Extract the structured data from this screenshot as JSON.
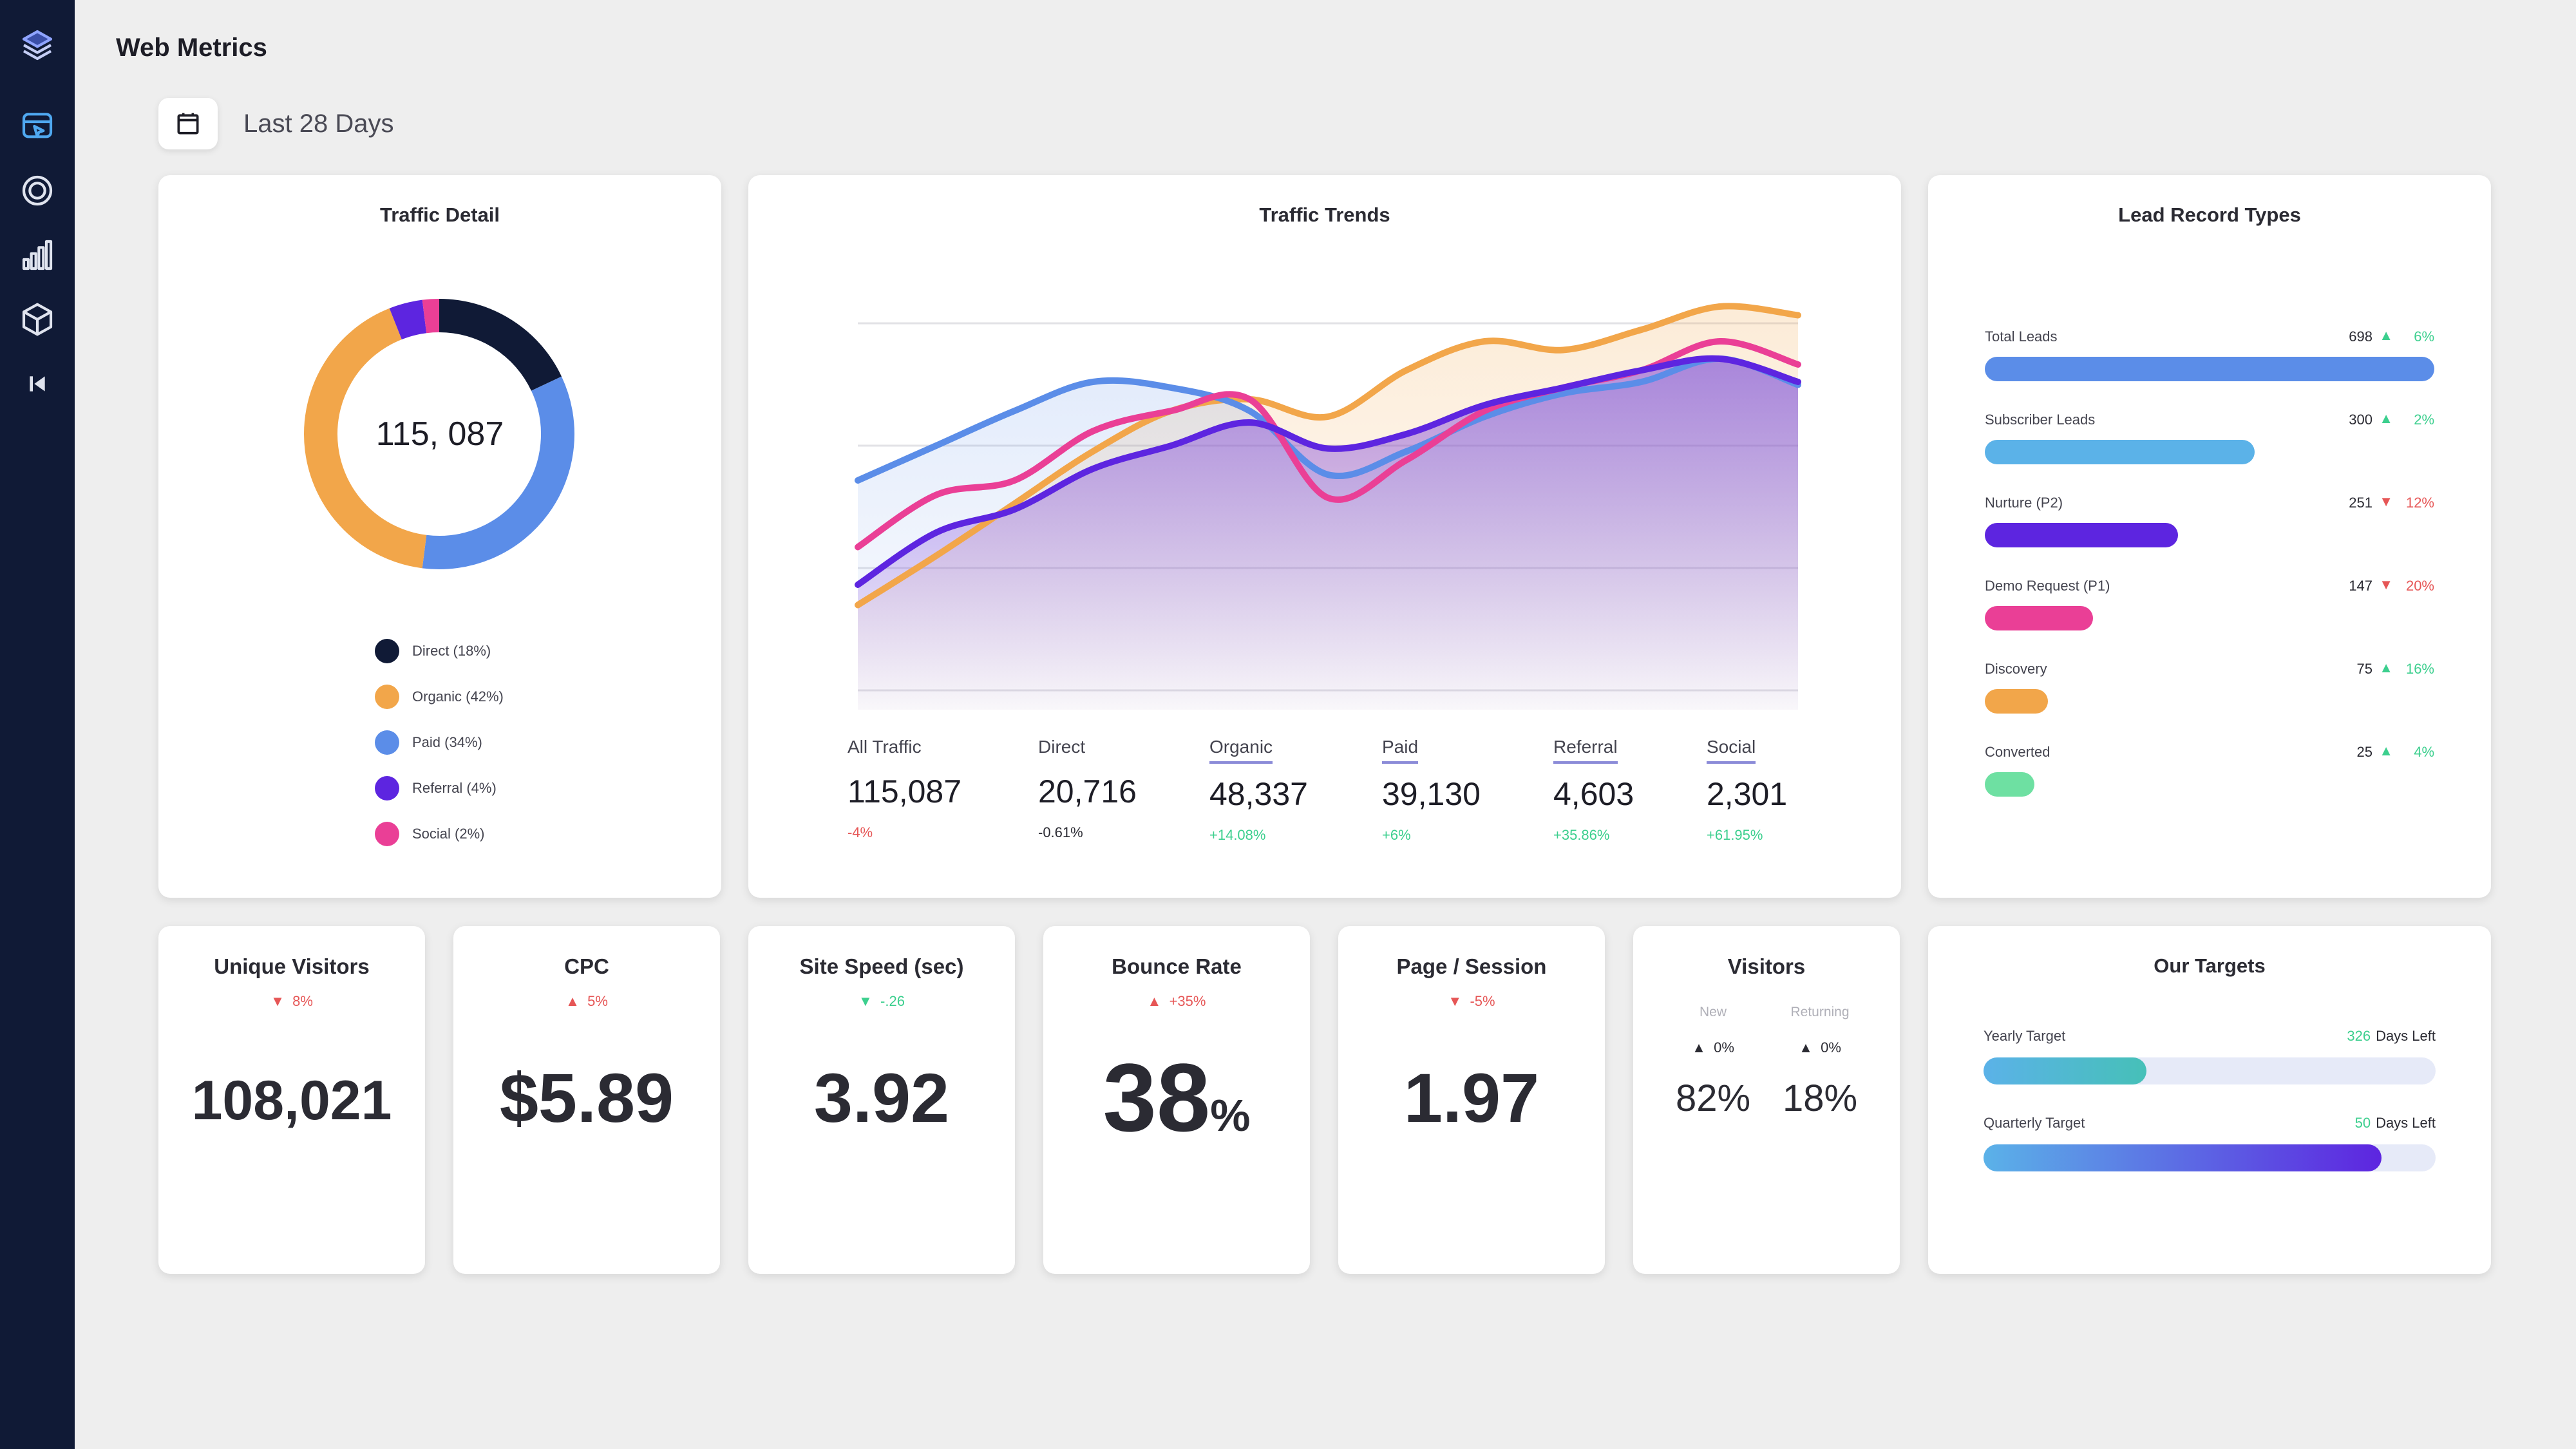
{
  "header": {
    "title": "Web Metrics"
  },
  "date_range": {
    "label": "Last 28 Days"
  },
  "sidebar": {
    "items": [
      {
        "icon": "layers-icon"
      },
      {
        "icon": "browser-click-icon"
      },
      {
        "icon": "target-icon"
      },
      {
        "icon": "bar-chart-icon"
      },
      {
        "icon": "cube-icon"
      },
      {
        "icon": "collapse-icon"
      }
    ]
  },
  "traffic_detail": {
    "title": "Traffic Detail",
    "total": "115, 087",
    "segments": [
      {
        "label": "Direct (18%)",
        "value": 18,
        "color": "#101a36"
      },
      {
        "label": "Organic (42%)",
        "value": 42,
        "color": "#f2a64a"
      },
      {
        "label": "Paid (34%)",
        "value": 34,
        "color": "#5b8de8"
      },
      {
        "label": "Referral (4%)",
        "value": 4,
        "color": "#5d25e0"
      },
      {
        "label": "Social (2%)",
        "value": 2,
        "color": "#ea3f96"
      }
    ]
  },
  "traffic_trends": {
    "title": "Traffic Trends",
    "stats": [
      {
        "label": "All Traffic",
        "value": "115,087",
        "change": "-4%",
        "trend": "down",
        "underline": false
      },
      {
        "label": "Direct",
        "value": "20,716",
        "change": "-0.61%",
        "trend": "neutral",
        "underline": false
      },
      {
        "label": "Organic",
        "value": "48,337",
        "change": "+14.08%",
        "trend": "up",
        "underline": true
      },
      {
        "label": "Paid",
        "value": "39,130",
        "change": "+6%",
        "trend": "up",
        "underline": true
      },
      {
        "label": "Referral",
        "value": "4,603",
        "change": "+35.86%",
        "trend": "up",
        "underline": true
      },
      {
        "label": "Social",
        "value": "2,301",
        "change": "+61.95%",
        "trend": "up",
        "underline": true
      }
    ]
  },
  "chart_data": {
    "type": "area",
    "x": [
      0,
      1,
      2,
      3,
      4,
      5,
      6,
      7,
      8,
      9,
      10,
      11,
      12
    ],
    "ylim": [
      0,
      100
    ],
    "grid": true,
    "series": [
      {
        "color": "#f2a64a",
        "values": [
          5,
          22,
          40,
          58,
          72,
          76,
          70,
          86,
          96,
          93,
          100,
          108,
          105
        ]
      },
      {
        "color": "#5b8de8",
        "values": [
          48,
          60,
          72,
          82,
          80,
          72,
          50,
          58,
          70,
          78,
          82,
          90,
          81
        ]
      },
      {
        "color": "#ea3f96",
        "values": [
          25,
          43,
          48,
          65,
          72,
          76,
          42,
          55,
          72,
          80,
          86,
          96,
          88
        ]
      },
      {
        "color": "#5d25e0",
        "values": [
          12,
          30,
          38,
          52,
          60,
          68,
          59,
          64,
          74,
          80,
          86,
          90,
          82
        ]
      }
    ]
  },
  "lead_record_types": {
    "title": "Lead Record Types",
    "rows": [
      {
        "name": "Total Leads",
        "count": "698",
        "arrow": "▲",
        "pct": "6%",
        "trend": "up",
        "fraction": 1.0,
        "color": "#5b8de8"
      },
      {
        "name": "Subscriber Leads",
        "count": "300",
        "arrow": "▲",
        "pct": "2%",
        "trend": "up",
        "fraction": 0.6,
        "color": "#5bb2e8"
      },
      {
        "name": "Nurture (P2)",
        "count": "251",
        "arrow": "▼",
        "pct": "12%",
        "trend": "down",
        "fraction": 0.43,
        "color": "#5d25e0"
      },
      {
        "name": "Demo Request (P1)",
        "count": "147",
        "arrow": "▼",
        "pct": "20%",
        "trend": "down",
        "fraction": 0.24,
        "color": "#ea3f96"
      },
      {
        "name": "Discovery",
        "count": "75",
        "arrow": "▲",
        "pct": "16%",
        "trend": "up",
        "fraction": 0.14,
        "color": "#f2a64a"
      },
      {
        "name": "Converted",
        "count": "25",
        "arrow": "▲",
        "pct": "4%",
        "trend": "up",
        "fraction": 0.11,
        "color": "#6ee0a2"
      }
    ]
  },
  "metrics": {
    "unique_visitors": {
      "title": "Unique Visitors",
      "arrow": "▼",
      "change": "8%",
      "trend": "down",
      "value": "108,021"
    },
    "cpc": {
      "title": "CPC",
      "arrow": "▲",
      "change": "5%",
      "trend": "down",
      "value": "$5.89"
    },
    "site_speed": {
      "title": "Site Speed (sec)",
      "arrow": "▼",
      "change": "-.26",
      "trend": "up",
      "value": "3.92"
    },
    "bounce_rate": {
      "title": "Bounce Rate",
      "arrow": "▲",
      "change": "+35%",
      "trend": "down",
      "value": "38",
      "unit": "%"
    },
    "page_session": {
      "title": "Page / Session",
      "arrow": "▼",
      "change": "-5%",
      "trend": "down",
      "value": "1.97"
    },
    "visitors": {
      "title": "Visitors",
      "new": {
        "label": "New",
        "arrow": "▲",
        "change": "0%",
        "value": "82%"
      },
      "returning": {
        "label": "Returning",
        "arrow": "▲",
        "change": "0%",
        "value": "18%"
      }
    }
  },
  "targets": {
    "title": "Our Targets",
    "rows": [
      {
        "name": "Yearly Target",
        "days": "326",
        "days_suffix": "Days Left",
        "fraction": 0.36,
        "fill": "linear-gradient(90deg,#5bb2e8,#46c0b8)"
      },
      {
        "name": "Quarterly Target",
        "days": "50",
        "days_suffix": "Days Left",
        "fraction": 0.88,
        "fill": "linear-gradient(90deg,#5bb2e8,#5d25e0)"
      }
    ]
  }
}
